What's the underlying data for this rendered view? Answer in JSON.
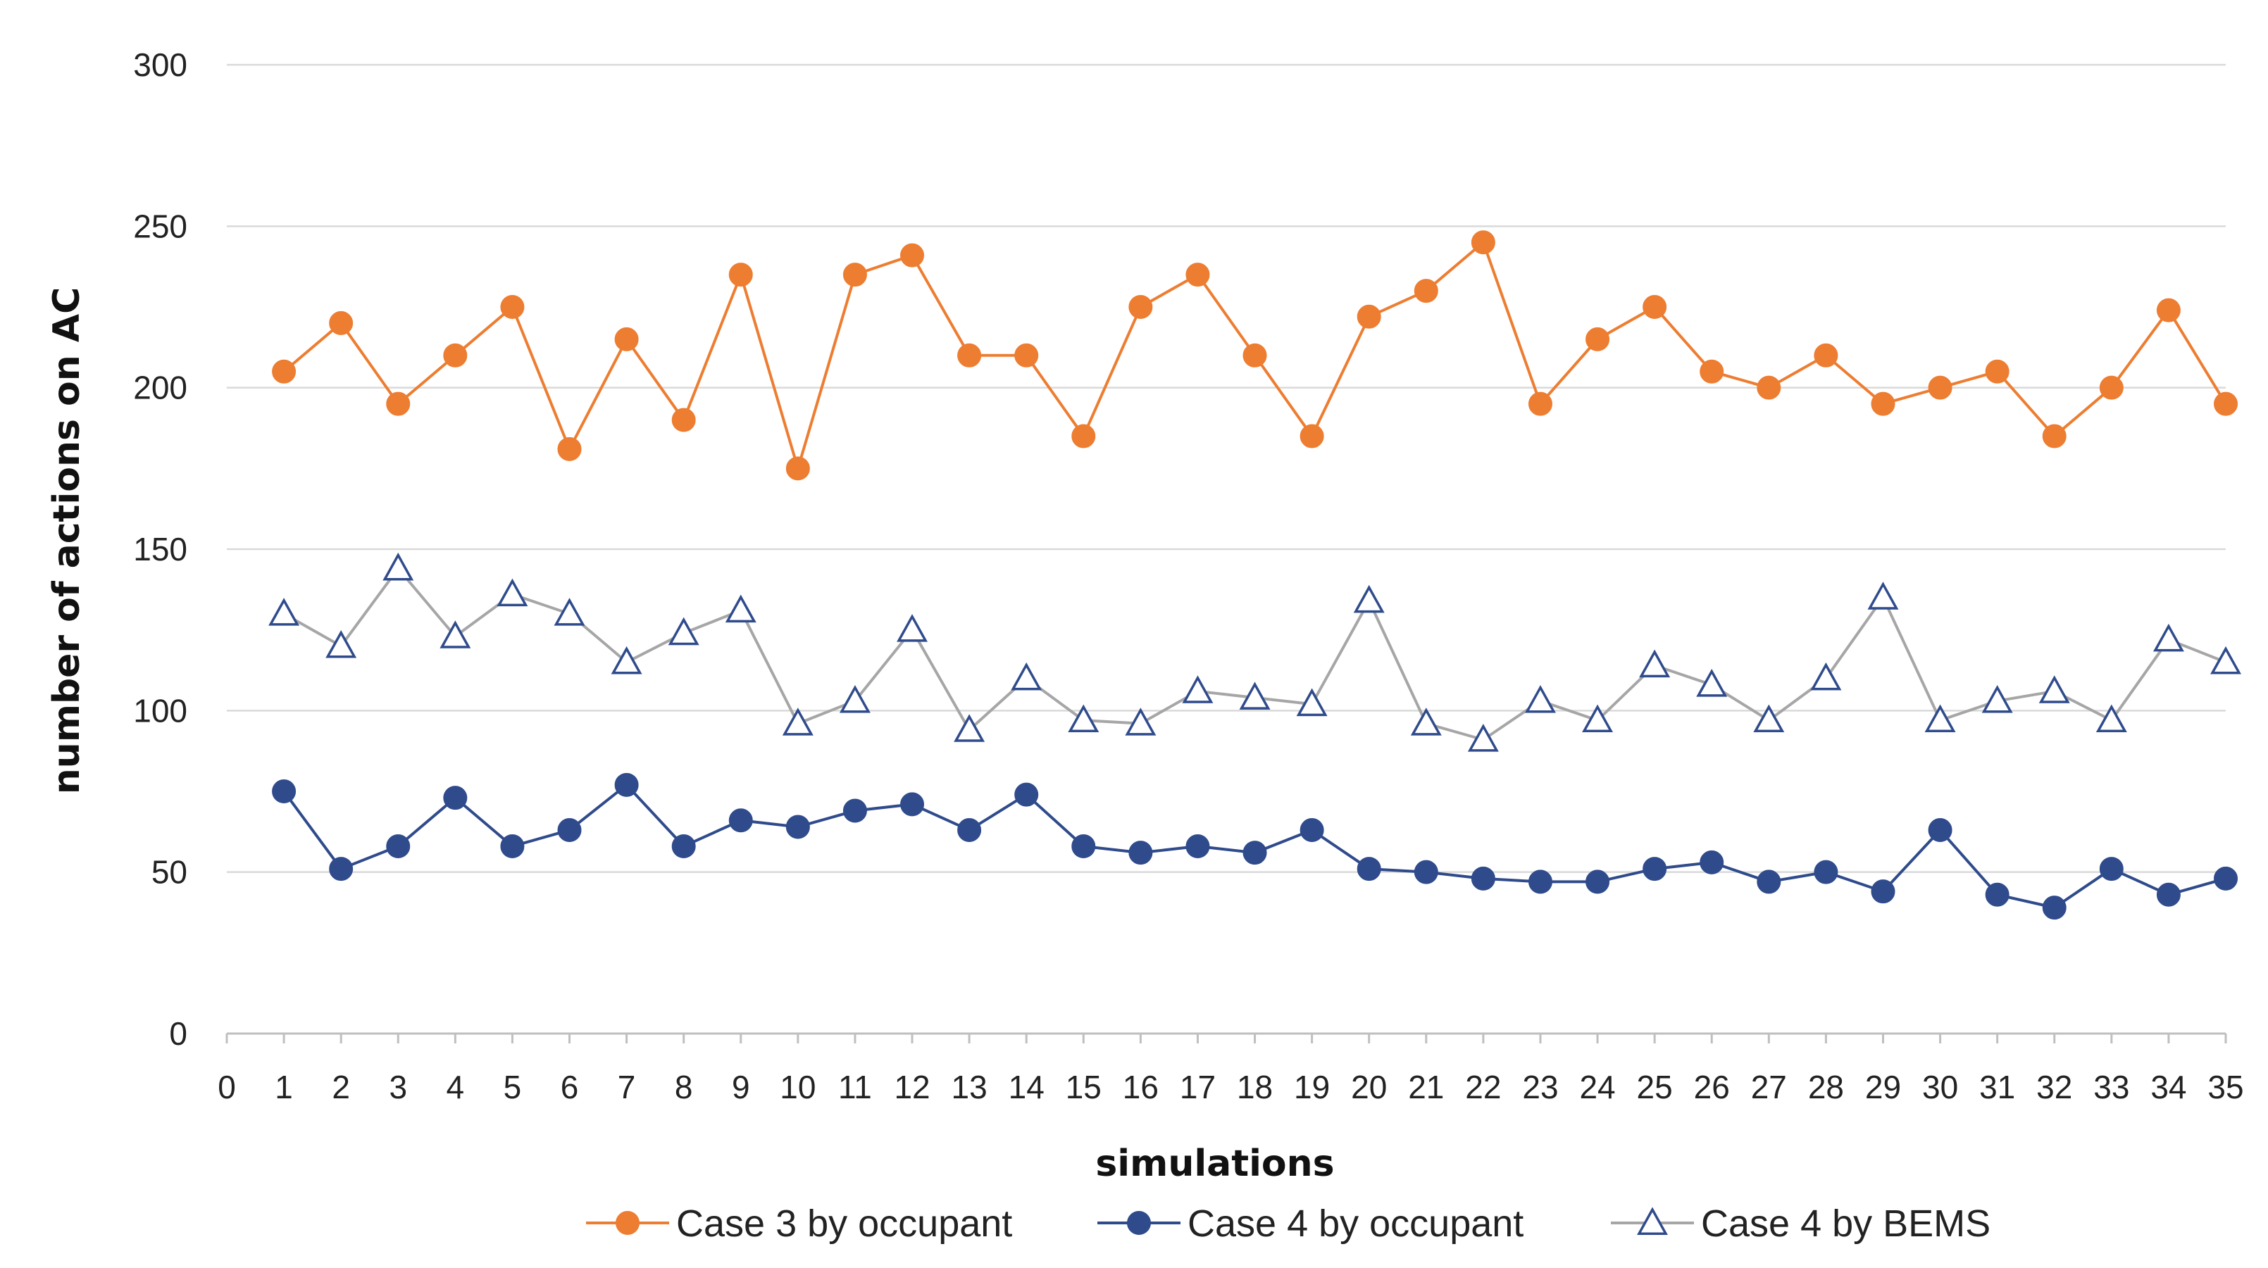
{
  "chart_data": {
    "type": "line",
    "title": "",
    "xlabel": "simulations",
    "ylabel": "number of actions on AC",
    "x_ticks": [
      0,
      1,
      2,
      3,
      4,
      5,
      6,
      7,
      8,
      9,
      10,
      11,
      12,
      13,
      14,
      15,
      16,
      17,
      18,
      19,
      20,
      21,
      22,
      23,
      24,
      25,
      26,
      27,
      28,
      29,
      30,
      31,
      32,
      33,
      34,
      35
    ],
    "x": [
      1,
      2,
      3,
      4,
      5,
      6,
      7,
      8,
      9,
      10,
      11,
      12,
      13,
      14,
      15,
      16,
      17,
      18,
      19,
      20,
      21,
      22,
      23,
      24,
      25,
      26,
      27,
      28,
      29,
      30,
      31,
      32,
      33,
      34,
      35
    ],
    "xlim": [
      0,
      35
    ],
    "ylim": [
      0,
      300
    ],
    "y_ticks": [
      0,
      50,
      100,
      150,
      200,
      250,
      300
    ],
    "grid": true,
    "legend_position": "bottom",
    "series": [
      {
        "name": "Case 3 by occupant",
        "color": "#ED7D31",
        "marker": "circle",
        "values": [
          205,
          220,
          195,
          210,
          225,
          181,
          215,
          190,
          235,
          175,
          235,
          241,
          210,
          210,
          185,
          225,
          235,
          210,
          185,
          222,
          230,
          245,
          195,
          215,
          225,
          205,
          200,
          210,
          195,
          200,
          205,
          185,
          200,
          224,
          195
        ]
      },
      {
        "name": "Case 4 by occupant",
        "color": "#2F4B8C",
        "marker": "circle",
        "values": [
          75,
          51,
          58,
          73,
          58,
          63,
          77,
          58,
          66,
          64,
          69,
          71,
          63,
          74,
          58,
          56,
          58,
          56,
          63,
          51,
          50,
          48,
          47,
          47,
          51,
          53,
          47,
          50,
          44,
          63,
          43,
          39,
          51,
          43,
          48
        ]
      },
      {
        "name": "Case 4 by BEMS",
        "color": "#A6A6A6",
        "marker": "triangle-open",
        "values": [
          130,
          120,
          144,
          123,
          136,
          130,
          115,
          124,
          131,
          96,
          103,
          125,
          94,
          110,
          97,
          96,
          106,
          104,
          102,
          134,
          96,
          91,
          103,
          97,
          114,
          108,
          97,
          110,
          135,
          97,
          103,
          106,
          97,
          122,
          115
        ]
      }
    ]
  }
}
